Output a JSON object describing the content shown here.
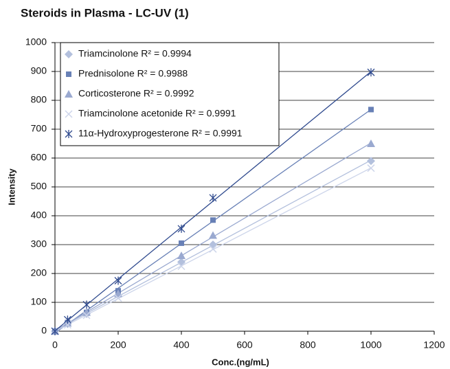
{
  "chart_data": {
    "type": "scatter",
    "title": "Steroids in Plasma - LC-UV (1)",
    "x_label": "Conc.(ng/mL)",
    "y_label": "Intensity",
    "x": [
      0,
      40,
      100,
      200,
      400,
      500,
      1000
    ],
    "series": [
      {
        "name": "Triamcinolone R² = 0.9994",
        "color": "#b3c0dd",
        "marker": "diamond",
        "values": [
          0,
          25,
          60,
          125,
          240,
          300,
          590
        ]
      },
      {
        "name": "Prednisolone R² = 0.9988",
        "color": "#6880b6",
        "marker": "square",
        "values": [
          0,
          30,
          65,
          140,
          305,
          385,
          768
        ]
      },
      {
        "name": "Corticosterone R² = 0.9992",
        "color": "#9aa9d0",
        "marker": "triangle",
        "values": [
          0,
          28,
          65,
          130,
          262,
          332,
          650
        ]
      },
      {
        "name": "Triamcinolone acetonide R² = 0.9991",
        "color": "#cdd5ea",
        "marker": "x",
        "values": [
          0,
          22,
          55,
          115,
          225,
          285,
          565
        ]
      },
      {
        "name": "11α-Hydroxyprogesterone R² = 0.9991",
        "color": "#2f4a8e",
        "marker": "star",
        "values": [
          0,
          40,
          92,
          175,
          355,
          462,
          897
        ]
      }
    ],
    "xlim": [
      0,
      1200
    ],
    "xticks": [
      0,
      200,
      400,
      600,
      800,
      1000,
      1200
    ],
    "ylim": [
      0,
      1000
    ],
    "yticks": [
      0,
      100,
      200,
      300,
      400,
      500,
      600,
      700,
      800,
      900,
      1000
    ],
    "grid": true,
    "legend": "top-left",
    "trendline": "linear"
  }
}
